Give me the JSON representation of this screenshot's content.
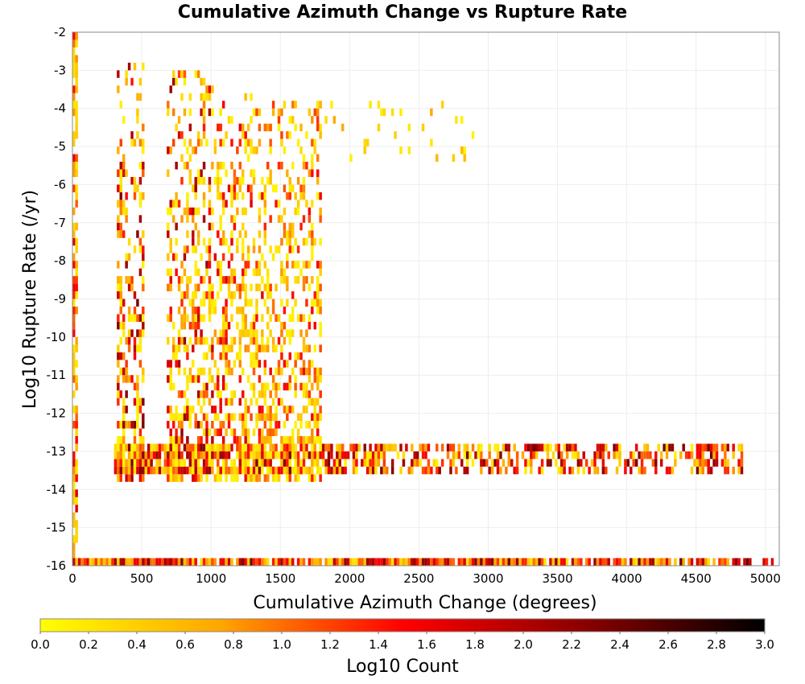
{
  "chart_data": {
    "type": "heatmap",
    "title": "Cumulative Azimuth Change vs Rupture Rate",
    "xlabel": "Cumulative Azimuth Change (degrees)",
    "ylabel": "Log10 Rupture Rate (/yr)",
    "xlim": [
      0,
      5100
    ],
    "ylim": [
      -16,
      -2
    ],
    "xticks": [
      0,
      500,
      1000,
      1500,
      2000,
      2500,
      3000,
      3500,
      4000,
      4500,
      5000
    ],
    "yticks": [
      -2,
      -3,
      -4,
      -5,
      -6,
      -7,
      -8,
      -9,
      -10,
      -11,
      -12,
      -13,
      -14,
      -15,
      -16
    ],
    "grid": true,
    "colorbar": {
      "label": "Log10 Count",
      "min": 0.0,
      "max": 3.0,
      "ticks": [
        0.0,
        0.2,
        0.4,
        0.6,
        0.8,
        1.0,
        1.2,
        1.4,
        1.6,
        1.8,
        2.0,
        2.2,
        2.4,
        2.6,
        2.8,
        3.0
      ],
      "tick_labels": [
        "0.0",
        "0.2",
        "0.4",
        "0.6",
        "0.8",
        "1.0",
        "1.2",
        "1.4",
        "1.6",
        "1.8",
        "2.0",
        "2.2",
        "2.4",
        "2.6",
        "2.8",
        "3.0"
      ],
      "colormap": [
        "#ffff00",
        "#ffa500",
        "#ff0000",
        "#8b0000",
        "#000000"
      ],
      "placement": "bottom"
    },
    "bin_size": {
      "x": 20,
      "y": 0.2
    },
    "regions": [
      {
        "name": "near-zero column",
        "x": [
          0,
          30
        ],
        "y": [
          -16,
          -2
        ],
        "log10_count": [
          0.2,
          1.8
        ]
      },
      {
        "name": "cluster ~400",
        "x": [
          320,
          520
        ],
        "y": [
          -13.8,
          -2.8
        ],
        "log10_count": [
          0.1,
          2.4
        ]
      },
      {
        "name": "cluster ~800",
        "x": [
          690,
          1020
        ],
        "y": [
          -13.8,
          -3.0
        ],
        "log10_count": [
          0.1,
          2.2
        ]
      },
      {
        "name": "cluster ~1200",
        "x": [
          1020,
          1380
        ],
        "y": [
          -13.8,
          -3.6
        ],
        "log10_count": [
          0.1,
          1.8
        ]
      },
      {
        "name": "cluster ~1600",
        "x": [
          1380,
          1800
        ],
        "y": [
          -13.8,
          -3.8
        ],
        "log10_count": [
          0.1,
          1.6
        ]
      },
      {
        "name": "band at -13",
        "x": [
          300,
          4830
        ],
        "y": [
          -13.6,
          -12.8
        ],
        "log10_count": [
          0.1,
          2.4
        ]
      },
      {
        "name": "bottom row at -16",
        "x": [
          0,
          5060
        ],
        "y": [
          -16,
          -15.8
        ],
        "log10_count": [
          0.2,
          2.4
        ]
      },
      {
        "name": "sparse upper scatter",
        "x": [
          1800,
          2900
        ],
        "y": [
          -5.4,
          -3.6
        ],
        "log10_count": [
          0.1,
          0.8
        ]
      }
    ]
  }
}
